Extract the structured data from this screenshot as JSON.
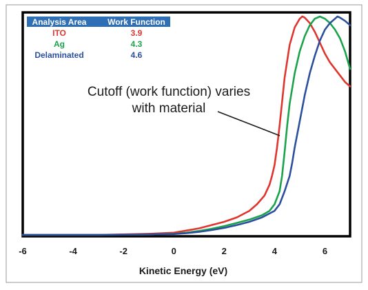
{
  "chart_data": {
    "type": "line",
    "xlabel": "Kinetic Energy (eV)",
    "xlim": [
      -6,
      7
    ],
    "ylim": [
      0,
      1
    ],
    "xticks": [
      "-6",
      "-4",
      "-2",
      "0",
      "2",
      "4",
      "6"
    ],
    "grid": false,
    "legend": {
      "placement": "top-left",
      "headers": [
        "Analysis Area",
        "Work Function"
      ],
      "rows": [
        {
          "name": "ITO",
          "value": "3.9",
          "color": "#e0342f"
        },
        {
          "name": "Ag",
          "value": "4.3",
          "color": "#1aa34a"
        },
        {
          "name": "Delaminated",
          "value": "4.6",
          "color": "#2b4f9c"
        }
      ],
      "header_bg": "#2e6fb6"
    },
    "annotation": {
      "text_line1": "Cutoff (work function) varies",
      "text_line2": "with material"
    },
    "series": [
      {
        "name": "ITO",
        "color": "#e0342f",
        "x": [
          -6,
          -3,
          -1,
          0,
          0.5,
          1,
          1.5,
          2,
          2.5,
          3,
          3.3,
          3.6,
          3.8,
          3.9,
          4.0,
          4.1,
          4.2,
          4.4,
          4.6,
          4.8,
          5.0,
          5.1,
          5.2,
          5.4,
          5.6,
          5.8,
          6.0,
          6.2,
          6.4,
          6.6,
          6.8,
          7.0
        ],
        "y": [
          0,
          0,
          0.005,
          0.01,
          0.02,
          0.03,
          0.045,
          0.06,
          0.08,
          0.11,
          0.14,
          0.18,
          0.23,
          0.27,
          0.32,
          0.4,
          0.5,
          0.72,
          0.87,
          0.95,
          0.99,
          1.0,
          0.995,
          0.97,
          0.93,
          0.88,
          0.83,
          0.79,
          0.76,
          0.73,
          0.7,
          0.68
        ]
      },
      {
        "name": "Ag",
        "color": "#1aa34a",
        "x": [
          -6,
          -3,
          -1,
          0,
          0.5,
          1,
          1.5,
          2,
          2.5,
          3,
          3.5,
          3.8,
          4.0,
          4.2,
          4.3,
          4.4,
          4.5,
          4.6,
          4.8,
          5.0,
          5.2,
          5.4,
          5.6,
          5.8,
          6.0,
          6.2,
          6.4,
          6.6,
          6.8,
          7.0
        ],
        "y": [
          0,
          0,
          0.002,
          0.005,
          0.01,
          0.018,
          0.028,
          0.04,
          0.055,
          0.07,
          0.09,
          0.11,
          0.14,
          0.2,
          0.27,
          0.38,
          0.5,
          0.6,
          0.74,
          0.84,
          0.91,
          0.96,
          0.99,
          1.0,
          0.99,
          0.97,
          0.94,
          0.9,
          0.84,
          0.76
        ]
      },
      {
        "name": "Delaminated",
        "color": "#2b4f9c",
        "x": [
          -6,
          -3,
          -1,
          0,
          0.5,
          1,
          1.5,
          2,
          2.5,
          3,
          3.5,
          4.0,
          4.2,
          4.4,
          4.6,
          4.7,
          4.8,
          5.0,
          5.2,
          5.4,
          5.6,
          5.8,
          6.0,
          6.2,
          6.4,
          6.5,
          6.6,
          6.8,
          7.0
        ],
        "y": [
          0,
          0,
          0.002,
          0.004,
          0.008,
          0.014,
          0.022,
          0.032,
          0.045,
          0.06,
          0.08,
          0.11,
          0.14,
          0.2,
          0.27,
          0.33,
          0.4,
          0.52,
          0.64,
          0.74,
          0.82,
          0.89,
          0.94,
          0.97,
          0.99,
          1.0,
          0.995,
          0.98,
          0.96
        ]
      }
    ]
  }
}
